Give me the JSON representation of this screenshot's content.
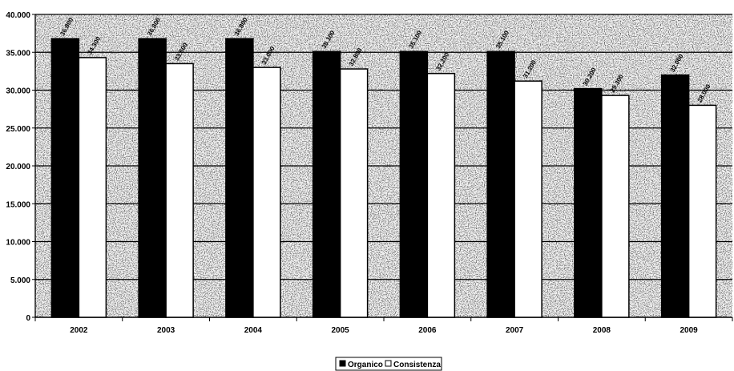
{
  "chart_data": {
    "type": "bar",
    "categories": [
      "2002",
      "2003",
      "2004",
      "2005",
      "2006",
      "2007",
      "2008",
      "2009"
    ],
    "series": [
      {
        "name": "Organico",
        "color": "#000000",
        "values": [
          36800,
          36800,
          36800,
          35100,
          35100,
          35100,
          30200,
          32000
        ]
      },
      {
        "name": "Consistenza",
        "color": "#ffffff",
        "values": [
          34300,
          33500,
          33000,
          32800,
          32200,
          31200,
          29300,
          28000
        ]
      }
    ],
    "y_ticks": [
      "0",
      "5.000",
      "10.000",
      "15.000",
      "20.000",
      "25.000",
      "30.000",
      "35.000",
      "40.000"
    ],
    "ylim": [
      0,
      40000
    ],
    "grid": true,
    "legend_position": "bottom-center",
    "data_labels_legible": false
  }
}
